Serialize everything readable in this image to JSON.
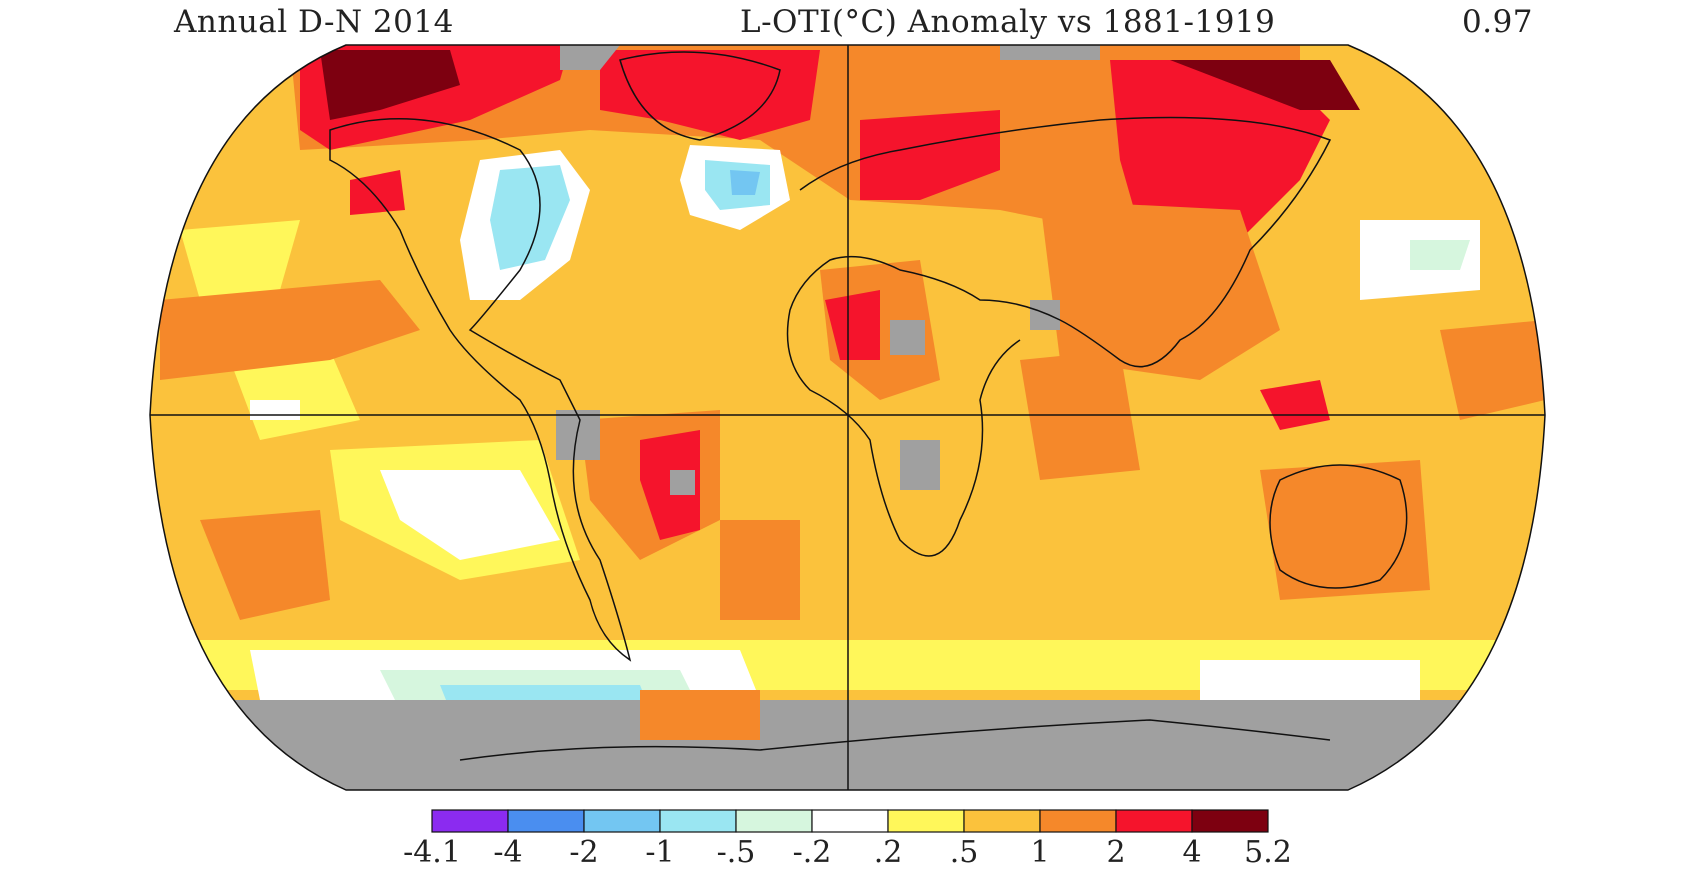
{
  "header": {
    "period": "Annual D-N 2014",
    "quantity": "L-OTI(°C) Anomaly vs 1881-1919",
    "global_mean": "0.97"
  },
  "legend": {
    "bins": [
      {
        "label": "-4.1",
        "color": "#8b2bf0"
      },
      {
        "label": "-4",
        "color": "#4a8ef0"
      },
      {
        "label": "-2",
        "color": "#73c6f2"
      },
      {
        "label": "-1",
        "color": "#9ae6f2"
      },
      {
        "label": "-.5",
        "color": "#d6f6de"
      },
      {
        "label": "-.2",
        "color": "#ffffff"
      },
      {
        "label": ".2",
        "color": "#fff75a"
      },
      {
        "label": ".5",
        "color": "#fbc23c"
      },
      {
        "label": "1",
        "color": "#f5882a"
      },
      {
        "label": "2",
        "color": "#f5142c"
      },
      {
        "label": "4",
        "color": "#7d0010"
      }
    ],
    "max_label": "5.2"
  },
  "map": {
    "projection": "Robinson",
    "missing_data_color": "#a0a0a0",
    "land_outline_color": "#111111"
  }
}
